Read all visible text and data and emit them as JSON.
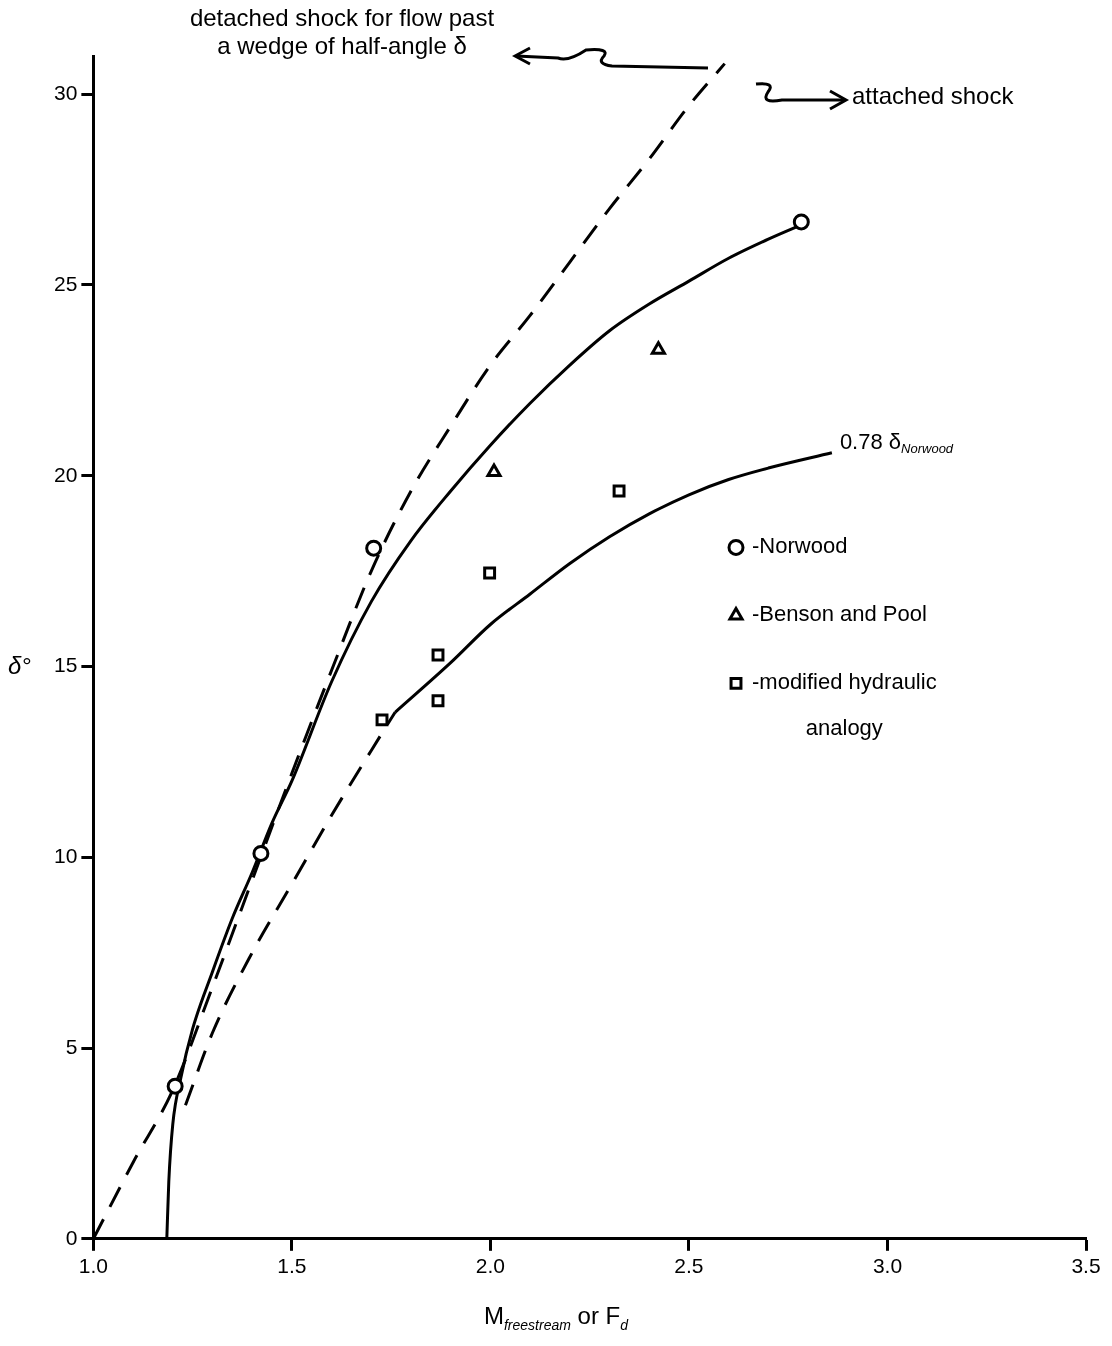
{
  "chart_data": {
    "type": "scatter",
    "xlabel": "M$_{freestream}$  or  F$_{d}$",
    "ylabel": "δ°",
    "xlim": [
      1,
      3.5
    ],
    "ylim": [
      0,
      31
    ],
    "xticks": [
      {
        "value": 1,
        "label": "1.0"
      },
      {
        "value": 1.5,
        "label": "1.5"
      },
      {
        "value": 2,
        "label": "2.0"
      },
      {
        "value": 2.5,
        "label": "2.5"
      },
      {
        "value": 3,
        "label": "3.0"
      },
      {
        "value": 3.5,
        "label": "3.5"
      }
    ],
    "yticks": [
      0,
      5,
      10,
      15,
      20,
      25,
      30
    ],
    "grid": false,
    "legend": "right",
    "annotations": [
      "detached shock for flow past a wedge of half-angle δ",
      "attached shock",
      {
        "text": "0.78 δ$_{Norwood}$",
        "x": 2.86,
        "y": 20.6
      }
    ],
    "series": [
      {
        "type": "line",
        "color": "#000000",
        "line_style": "dashed",
        "marker": "none",
        "x": [
          1.0,
          1.1,
          1.2,
          1.3,
          1.4,
          1.5,
          1.6,
          1.7,
          1.8,
          1.9,
          2.0,
          2.1,
          2.2,
          2.3,
          2.4,
          2.5,
          2.59
        ],
        "values": [
          0,
          2.0,
          3.9,
          6.6,
          9.4,
          12.2,
          14.9,
          17.5,
          19.6,
          21.3,
          22.9,
          24.2,
          25.6,
          27.0,
          28.3,
          29.7,
          30.8
        ]
      },
      {
        "type": "line",
        "color": "#000000",
        "line_style": "solid",
        "marker": "none",
        "x": [
          1.185,
          1.19,
          1.2,
          1.22,
          1.25,
          1.3,
          1.35,
          1.4,
          1.45,
          1.5,
          1.6,
          1.7,
          1.8,
          1.9,
          2.0,
          2.1,
          2.2,
          2.3,
          2.4,
          2.5,
          2.6,
          2.7,
          2.8
        ],
        "values": [
          0,
          1.5,
          3.0,
          4.2,
          5.5,
          7.0,
          8.4,
          9.6,
          10.9,
          12.0,
          14.6,
          16.7,
          18.3,
          19.6,
          20.8,
          21.9,
          22.9,
          23.8,
          24.5,
          25.1,
          25.7,
          26.2,
          26.65
        ]
      },
      {
        "type": "line",
        "color": "#000000",
        "line_style": "dashed",
        "marker": "none",
        "x": [
          1.232,
          1.3,
          1.4,
          1.5,
          1.6,
          1.7,
          1.76
        ],
        "values": [
          3.5,
          5.4,
          7.5,
          9.3,
          11.1,
          12.8,
          13.8
        ]
      },
      {
        "type": "line",
        "color": "#000000",
        "line_style": "solid",
        "marker": "none",
        "x": [
          1.76,
          1.9,
          2.0,
          2.1,
          2.2,
          2.3,
          2.4,
          2.5,
          2.6,
          2.7,
          2.86
        ],
        "values": [
          13.8,
          15.1,
          16.1,
          16.9,
          17.7,
          18.4,
          19.0,
          19.5,
          19.9,
          20.2,
          20.6
        ]
      },
      {
        "name": "-Norwood",
        "color": "#000000",
        "marker": "circle",
        "x": [
          1.206,
          1.422,
          1.706,
          2.783
        ],
        "values": [
          4.0,
          10.1,
          18.1,
          26.65
        ]
      },
      {
        "name": "-Benson and Pool",
        "color": "#000000",
        "marker": "triangle",
        "x": [
          2.009,
          2.423
        ],
        "values": [
          20.1,
          23.3
        ]
      },
      {
        "name": "-modified hydraulic analogy",
        "color": "#000000",
        "marker": "square",
        "x": [
          1.727,
          1.868,
          1.868,
          1.998,
          2.324
        ],
        "values": [
          13.6,
          15.3,
          14.1,
          17.45,
          19.6
        ]
      }
    ]
  }
}
